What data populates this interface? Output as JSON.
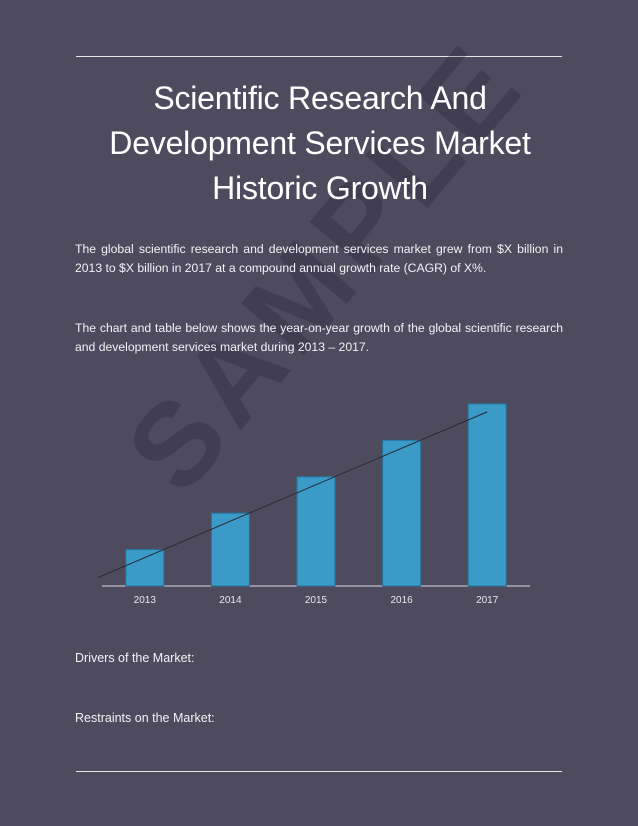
{
  "document": {
    "title": "Scientific Research And Development Services Market Historic Growth",
    "paragraph1": "The global scientific research and development services market grew from $X billion in 2013 to $X billion in 2017 at a compound annual growth rate (CAGR) of X%.",
    "paragraph2": "The chart and table below shows the year-on-year growth of the global scientific research and development services market during 2013 – 2017.",
    "drivers_label": "Drivers of the Market:",
    "restraints_label": "Restraints on the Market:",
    "watermark": "SAMPLE"
  },
  "colors": {
    "background": "#4e4b5e",
    "bar": "#3a9bc8",
    "bar_edge": "#24739a",
    "trendline": "#2a2a34"
  },
  "chart_data": {
    "type": "bar",
    "categories": [
      "2013",
      "2014",
      "2015",
      "2016",
      "2017"
    ],
    "values": [
      1,
      2,
      3,
      4,
      5
    ],
    "title": "",
    "xlabel": "",
    "ylabel": "",
    "ylim": [
      0,
      5.6
    ],
    "grid": false,
    "trendline": true
  }
}
